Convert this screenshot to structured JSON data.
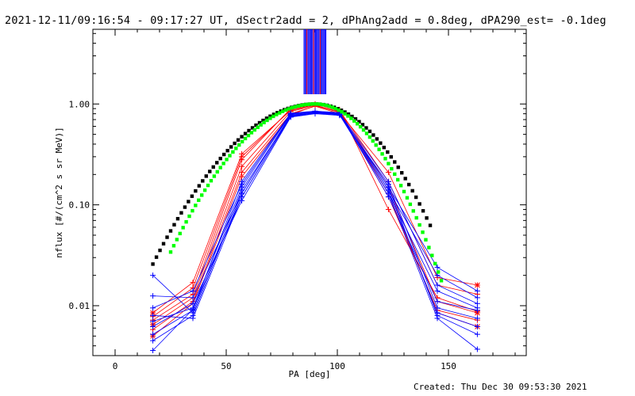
{
  "title": "2021-12-11/09:16:54 - 09:17:27 UT, dSectr2add = 2, dPhAng2add = 0.8deg, dPA290_est= -0.1deg",
  "footer": "Created: Thu Dec 30 09:53:30 2021",
  "colors": {
    "red": "#ff0000",
    "blue": "#0000ff",
    "green": "#00ff00",
    "black": "#000000"
  },
  "chart_data": {
    "type": "line",
    "xlabel": "PA [deg]",
    "ylabel": "nflux [#/(cm^2 s sr MeV)]",
    "xlim": [
      -10,
      185
    ],
    "ylim": [
      0.0032,
      5.5
    ],
    "yscale": "log",
    "xticks": [
      0,
      50,
      100,
      150
    ],
    "xtick_labels": [
      "0",
      "50",
      "100",
      "150"
    ],
    "yticks": [
      0.01,
      0.1,
      1.0
    ],
    "ytick_labels": [
      "0.01",
      "0.10",
      "1.00"
    ],
    "x": [
      17,
      35,
      57,
      79,
      90,
      101,
      123,
      145,
      163
    ],
    "series": [
      {
        "color": "red",
        "values": [
          0.0085,
          0.017,
          0.32,
          0.86,
          0.98,
          0.82,
          0.21,
          0.019,
          0.016
        ]
      },
      {
        "color": "red",
        "values": [
          0.0072,
          0.013,
          0.28,
          0.9,
          1.0,
          0.86,
          0.17,
          0.016,
          0.013
        ]
      },
      {
        "color": "red",
        "values": [
          0.0065,
          0.012,
          0.24,
          0.84,
          0.97,
          0.84,
          0.15,
          0.011,
          0.0085
        ]
      },
      {
        "color": "red",
        "values": [
          0.0058,
          0.011,
          0.21,
          0.8,
          0.95,
          0.8,
          0.12,
          0.009,
          0.0072
        ]
      },
      {
        "color": "red",
        "values": [
          0.005,
          0.0105,
          0.19,
          0.78,
          0.96,
          0.83,
          0.13,
          0.0085,
          0.0062
        ]
      },
      {
        "color": "red",
        "values": [
          0.0078,
          0.015,
          0.3,
          0.88,
          0.99,
          0.88,
          0.09,
          0.012,
          0.0088
        ]
      },
      {
        "color": "blue",
        "values": [
          0.02,
          0.0085,
          0.14,
          0.75,
          0.83,
          0.8,
          0.15,
          0.024,
          0.014
        ]
      },
      {
        "color": "blue",
        "values": [
          0.0125,
          0.012,
          0.13,
          0.78,
          0.82,
          0.79,
          0.14,
          0.02,
          0.012
        ]
      },
      {
        "color": "blue",
        "values": [
          0.0095,
          0.014,
          0.16,
          0.8,
          0.84,
          0.81,
          0.17,
          0.016,
          0.0105
        ]
      },
      {
        "color": "blue",
        "values": [
          0.008,
          0.0075,
          0.12,
          0.76,
          0.81,
          0.78,
          0.13,
          0.014,
          0.0095
        ]
      },
      {
        "color": "blue",
        "values": [
          0.007,
          0.0095,
          0.15,
          0.79,
          0.83,
          0.8,
          0.12,
          0.011,
          0.009
        ]
      },
      {
        "color": "blue",
        "values": [
          0.0062,
          0.0105,
          0.11,
          0.74,
          0.8,
          0.77,
          0.16,
          0.0095,
          0.0075
        ]
      },
      {
        "color": "blue",
        "values": [
          0.0052,
          0.009,
          0.17,
          0.81,
          0.85,
          0.82,
          0.14,
          0.0085,
          0.0062
        ]
      },
      {
        "color": "blue",
        "values": [
          0.0045,
          0.008,
          0.13,
          0.77,
          0.82,
          0.79,
          0.15,
          0.008,
          0.0052
        ]
      },
      {
        "color": "blue",
        "values": [
          0.0036,
          0.0092,
          0.12,
          0.75,
          0.81,
          0.78,
          0.13,
          0.0075,
          0.0037
        ]
      }
    ],
    "fits": [
      {
        "color": "black",
        "style": "thick dotted",
        "shape": "gaussian",
        "peak_x": 90,
        "peak_y": 1.0,
        "x_range": [
          17,
          142
        ]
      },
      {
        "color": "green",
        "style": "thick dotted",
        "shape": "gaussian",
        "peak_x": 90,
        "peak_y": 1.0,
        "x_range": [
          25,
          148
        ]
      }
    ],
    "vertical_bars": {
      "x_range": [
        85,
        95
      ],
      "y_top": 5.5,
      "y_bottom": 1.25,
      "colors": [
        "blue",
        "red"
      ]
    }
  }
}
